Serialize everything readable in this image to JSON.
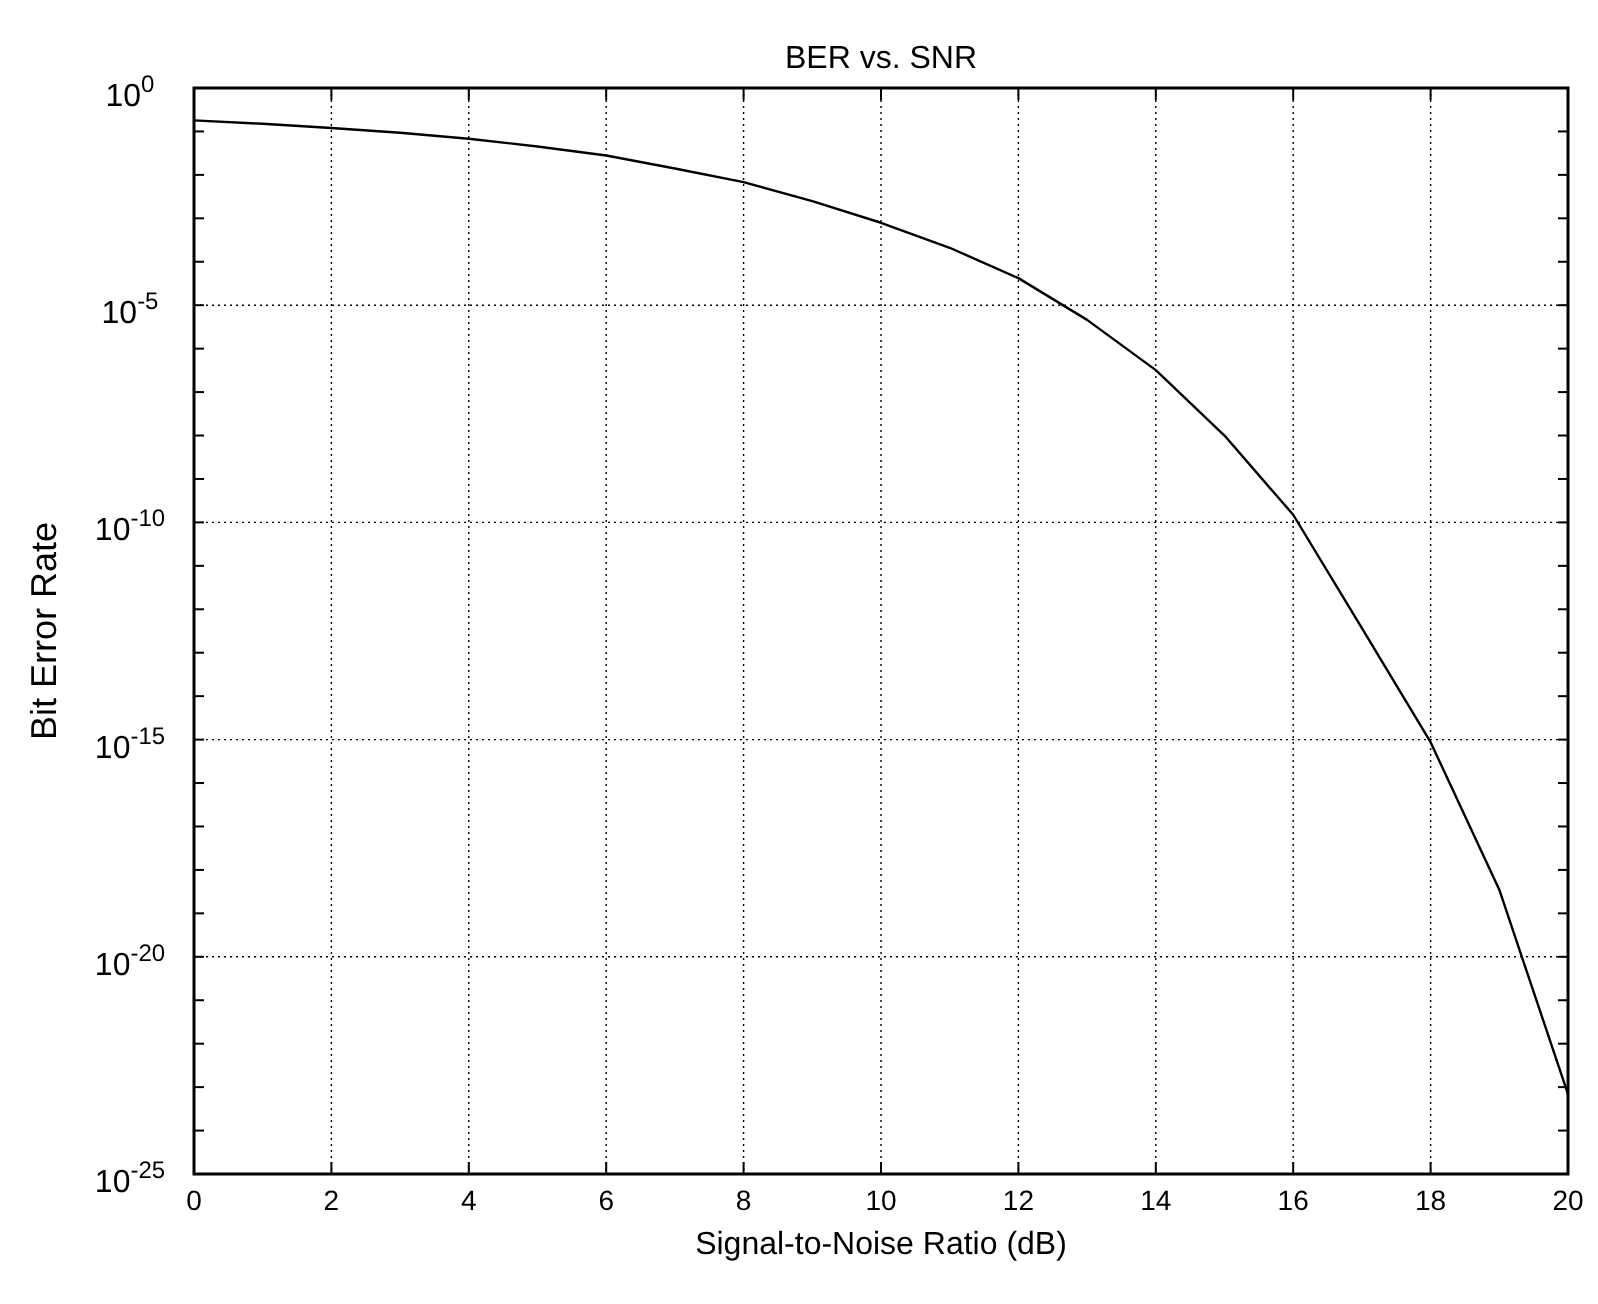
{
  "chart_data": {
    "type": "line",
    "title": "BER vs. SNR",
    "xlabel": "Signal-to-Noise Ratio (dB)",
    "ylabel": "Bit Error Rate",
    "x": [
      0,
      1,
      2,
      3,
      4,
      5,
      6,
      7,
      8,
      9,
      10,
      11,
      12,
      13,
      14,
      15,
      16,
      17,
      18,
      19,
      20
    ],
    "series": [
      {
        "color": "#000000",
        "values": [
          0.18,
          0.15,
          0.12,
          0.093,
          0.068,
          0.045,
          0.028,
          0.014,
          0.0068,
          0.0025,
          0.00079,
          0.00021,
          4.2e-05,
          4.6e-06,
          3.2e-07,
          1e-08,
          1.5e-10,
          3.7e-13,
          8.7e-16,
          3.5e-19,
          6.9e-24
        ]
      }
    ],
    "log": "y",
    "xlim": [
      0,
      20
    ],
    "ylim": [
      1e-25,
      1
    ],
    "xticks": [
      0,
      2,
      4,
      6,
      8,
      10,
      12,
      14,
      16,
      18,
      20
    ],
    "yticks": [
      {
        "value": 1e-25,
        "label": "10$^{-25}$"
      },
      {
        "value": 1e-24,
        "label": null
      },
      {
        "value": 1e-23,
        "label": null
      },
      {
        "value": 1e-22,
        "label": null
      },
      {
        "value": 1e-21,
        "label": null
      },
      {
        "value": 1e-20,
        "label": "10$^{-20}$"
      },
      {
        "value": 1e-19,
        "label": null
      },
      {
        "value": 1e-18,
        "label": null
      },
      {
        "value": 1e-17,
        "label": null
      },
      {
        "value": 1e-16,
        "label": null
      },
      {
        "value": 1e-15,
        "label": "10$^{-15}$"
      },
      {
        "value": 1e-14,
        "label": null
      },
      {
        "value": 1e-13,
        "label": null
      },
      {
        "value": 1e-12,
        "label": null
      },
      {
        "value": 1e-11,
        "label": null
      },
      {
        "value": 1e-10,
        "label": "10$^{-10}$"
      },
      {
        "value": 1e-09,
        "label": null
      },
      {
        "value": 1e-08,
        "label": null
      },
      {
        "value": 1e-07,
        "label": null
      },
      {
        "value": 1e-06,
        "label": null
      },
      {
        "value": 1e-05,
        "label": "10$^{-5}$"
      },
      {
        "value": 0.0001,
        "label": null
      },
      {
        "value": 0.001,
        "label": null
      },
      {
        "value": 0.01,
        "label": null
      },
      {
        "value": 0.1,
        "label": null
      },
      {
        "value": 1,
        "label": "10$^{0}$"
      }
    ],
    "grid": true,
    "marker": "none",
    "line_style": "solid"
  }
}
